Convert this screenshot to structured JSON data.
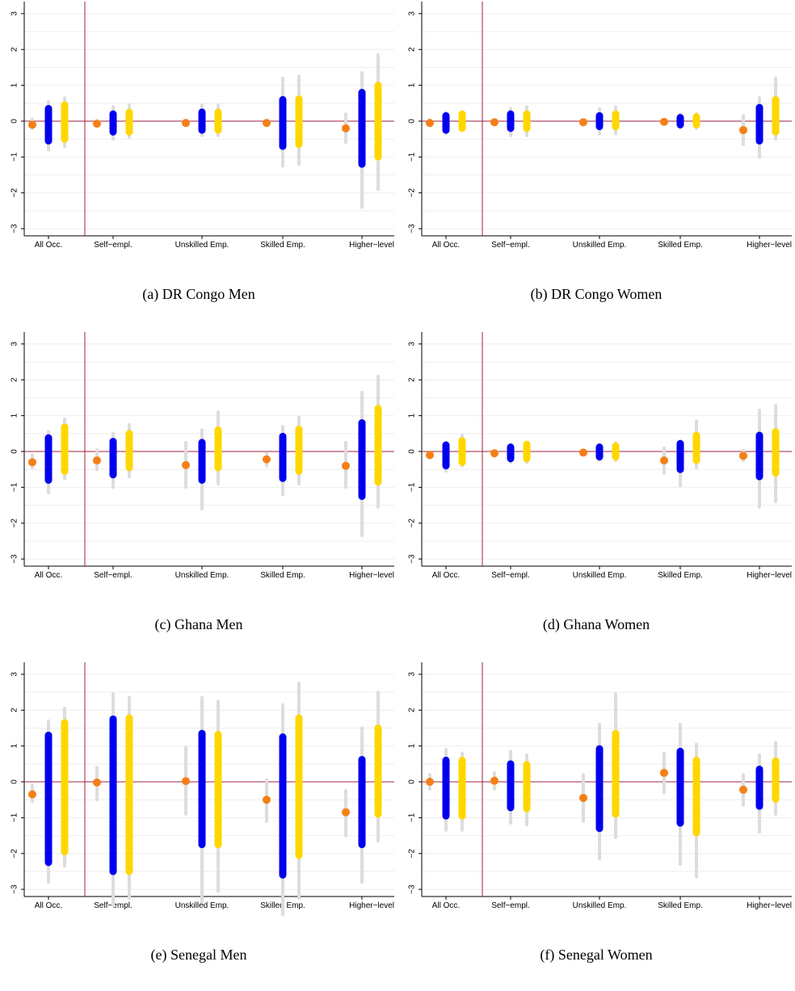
{
  "colors": {
    "point": "#F57F17",
    "blue_bar": "#0000EE",
    "yellow_bar": "#FFD700",
    "ci_gray": "#DDDDDD",
    "zero_line": "#A0203C",
    "divider": "#A0203C",
    "grid": "#EEEEEE"
  },
  "chart_data": [
    {
      "type": "interval",
      "letter": "(a)",
      "title": "DR Congo Men",
      "categories": [
        "All Occ.",
        "Self−empl.",
        "Unskilled Emp.",
        "Skilled Emp.",
        "Higher−level"
      ],
      "ylim": [
        -3.2,
        3.2
      ],
      "yticks": [
        "−3",
        "−2",
        "−1",
        "0",
        "1",
        "2",
        "3"
      ],
      "grid": true,
      "points": [
        {
          "y": -0.1,
          "ci": [
            -0.2,
            0.05
          ]
        },
        {
          "y": -0.07,
          "ci": [
            -0.15,
            0.02
          ]
        },
        {
          "y": -0.05,
          "ci": [
            -0.1,
            0.02
          ]
        },
        {
          "y": -0.05,
          "ci": [
            -0.1,
            0.02
          ]
        },
        {
          "y": -0.2,
          "ci": [
            -0.6,
            0.2
          ]
        }
      ],
      "blue": [
        {
          "lo": -0.55,
          "hi": 0.35,
          "ci": [
            -0.8,
            0.55
          ]
        },
        {
          "lo": -0.3,
          "hi": 0.2,
          "ci": [
            -0.5,
            0.4
          ]
        },
        {
          "lo": -0.25,
          "hi": 0.25,
          "ci": [
            -0.4,
            0.45
          ]
        },
        {
          "lo": -0.7,
          "hi": 0.6,
          "ci": [
            -1.25,
            1.2
          ]
        },
        {
          "lo": -1.2,
          "hi": 0.8,
          "ci": [
            -2.4,
            1.35
          ]
        }
      ],
      "yellow": [
        {
          "lo": -0.5,
          "hi": 0.45,
          "ci": [
            -0.7,
            0.65
          ]
        },
        {
          "lo": -0.3,
          "hi": 0.25,
          "ci": [
            -0.45,
            0.45
          ]
        },
        {
          "lo": -0.25,
          "hi": 0.25,
          "ci": [
            -0.4,
            0.45
          ]
        },
        {
          "lo": -0.65,
          "hi": 0.62,
          "ci": [
            -1.2,
            1.25
          ]
        },
        {
          "lo": -1.0,
          "hi": 1.0,
          "ci": [
            -1.9,
            1.85
          ]
        }
      ]
    },
    {
      "type": "interval",
      "letter": "(b)",
      "title": "DR Congo Women",
      "categories": [
        "All Occ.",
        "Self−empl.",
        "Unskilled Emp.",
        "Skilled Emp.",
        "Higher−level"
      ],
      "ylim": [
        -3.2,
        3.2
      ],
      "yticks": [
        "−3",
        "−2",
        "−1",
        "0",
        "1",
        "2",
        "3"
      ],
      "grid": true,
      "points": [
        {
          "y": -0.05,
          "ci": [
            -0.12,
            0.03
          ]
        },
        {
          "y": -0.03,
          "ci": [
            -0.08,
            0.02
          ]
        },
        {
          "y": -0.03,
          "ci": [
            -0.08,
            0.02
          ]
        },
        {
          "y": -0.02,
          "ci": [
            -0.06,
            0.02
          ]
        },
        {
          "y": -0.25,
          "ci": [
            -0.65,
            0.15
          ]
        }
      ],
      "blue": [
        {
          "lo": -0.25,
          "hi": 0.15,
          "ci": [
            -0.35,
            0.25
          ]
        },
        {
          "lo": -0.2,
          "hi": 0.2,
          "ci": [
            -0.4,
            0.35
          ]
        },
        {
          "lo": -0.15,
          "hi": 0.15,
          "ci": [
            -0.35,
            0.35
          ]
        },
        {
          "lo": -0.1,
          "hi": 0.1,
          "ci": [
            -0.2,
            0.2
          ]
        },
        {
          "lo": -0.55,
          "hi": 0.38,
          "ci": [
            -1.0,
            0.65
          ]
        }
      ],
      "yellow": [
        {
          "lo": -0.2,
          "hi": 0.2,
          "ci": [
            -0.25,
            0.25
          ]
        },
        {
          "lo": -0.2,
          "hi": 0.2,
          "ci": [
            -0.4,
            0.4
          ]
        },
        {
          "lo": -0.15,
          "hi": 0.2,
          "ci": [
            -0.35,
            0.4
          ]
        },
        {
          "lo": -0.1,
          "hi": 0.12,
          "ci": [
            -0.2,
            0.2
          ]
        },
        {
          "lo": -0.3,
          "hi": 0.6,
          "ci": [
            -0.5,
            1.2
          ]
        }
      ]
    },
    {
      "type": "interval",
      "letter": "(c)",
      "title": "Ghana Men",
      "categories": [
        "All Occ.",
        "Self−empl.",
        "Unskilled Emp.",
        "Skilled Emp.",
        "Higher−level"
      ],
      "ylim": [
        -3.2,
        3.2
      ],
      "yticks": [
        "−3",
        "−2",
        "−1",
        "0",
        "1",
        "2",
        "3"
      ],
      "grid": true,
      "points": [
        {
          "y": -0.3,
          "ci": [
            -0.45,
            -0.1
          ]
        },
        {
          "y": -0.25,
          "ci": [
            -0.5,
            0.05
          ]
        },
        {
          "y": -0.38,
          "ci": [
            -1.0,
            0.25
          ]
        },
        {
          "y": -0.22,
          "ci": [
            -0.4,
            -0.05
          ]
        },
        {
          "y": -0.4,
          "ci": [
            -1.0,
            0.25
          ]
        }
      ],
      "blue": [
        {
          "lo": -0.8,
          "hi": 0.38,
          "ci": [
            -1.15,
            0.55
          ]
        },
        {
          "lo": -0.65,
          "hi": 0.28,
          "ci": [
            -1.0,
            0.5
          ]
        },
        {
          "lo": -0.8,
          "hi": 0.25,
          "ci": [
            -1.6,
            0.6
          ]
        },
        {
          "lo": -0.75,
          "hi": 0.42,
          "ci": [
            -1.2,
            0.7
          ]
        },
        {
          "lo": -1.25,
          "hi": 0.8,
          "ci": [
            -2.35,
            1.65
          ]
        }
      ],
      "yellow": [
        {
          "lo": -0.55,
          "hi": 0.68,
          "ci": [
            -0.75,
            0.9
          ]
        },
        {
          "lo": -0.45,
          "hi": 0.5,
          "ci": [
            -0.7,
            0.75
          ]
        },
        {
          "lo": -0.45,
          "hi": 0.6,
          "ci": [
            -0.9,
            1.1
          ]
        },
        {
          "lo": -0.55,
          "hi": 0.62,
          "ci": [
            -0.9,
            0.95
          ]
        },
        {
          "lo": -0.85,
          "hi": 1.2,
          "ci": [
            -1.55,
            2.1
          ]
        }
      ]
    },
    {
      "type": "interval",
      "letter": "(d)",
      "title": "Ghana Women",
      "categories": [
        "All Occ.",
        "Self−empl.",
        "Unskilled Emp.",
        "Skilled Emp.",
        "Higher−level"
      ],
      "ylim": [
        -3.2,
        3.2
      ],
      "yticks": [
        "−3",
        "−2",
        "−1",
        "0",
        "1",
        "2",
        "3"
      ],
      "grid": true,
      "points": [
        {
          "y": -0.1,
          "ci": [
            -0.18,
            0.0
          ]
        },
        {
          "y": -0.05,
          "ci": [
            -0.1,
            0.02
          ]
        },
        {
          "y": -0.03,
          "ci": [
            -0.08,
            0.02
          ]
        },
        {
          "y": -0.25,
          "ci": [
            -0.6,
            0.1
          ]
        },
        {
          "y": -0.12,
          "ci": [
            -0.25,
            0.02
          ]
        }
      ],
      "blue": [
        {
          "lo": -0.4,
          "hi": 0.18,
          "ci": [
            -0.55,
            0.25
          ]
        },
        {
          "lo": -0.2,
          "hi": 0.12,
          "ci": [
            -0.3,
            0.2
          ]
        },
        {
          "lo": -0.15,
          "hi": 0.12,
          "ci": [
            -0.25,
            0.2
          ]
        },
        {
          "lo": -0.5,
          "hi": 0.22,
          "ci": [
            -0.95,
            0.3
          ]
        },
        {
          "lo": -0.7,
          "hi": 0.45,
          "ci": [
            -1.55,
            1.15
          ]
        }
      ],
      "yellow": [
        {
          "lo": -0.3,
          "hi": 0.3,
          "ci": [
            -0.4,
            0.45
          ]
        },
        {
          "lo": -0.2,
          "hi": 0.2,
          "ci": [
            -0.3,
            0.25
          ]
        },
        {
          "lo": -0.15,
          "hi": 0.15,
          "ci": [
            -0.25,
            0.25
          ]
        },
        {
          "lo": -0.25,
          "hi": 0.45,
          "ci": [
            -0.45,
            0.85
          ]
        },
        {
          "lo": -0.6,
          "hi": 0.55,
          "ci": [
            -1.4,
            1.28
          ]
        }
      ]
    },
    {
      "type": "interval",
      "letter": "(e)",
      "title": "Senegal Men",
      "categories": [
        "All Occ.",
        "Self−empl.",
        "Unskilled Emp.",
        "Skilled Emp.",
        "Higher−level"
      ],
      "ylim": [
        -3.2,
        3.2
      ],
      "yticks": [
        "−3",
        "−2",
        "−1",
        "0",
        "1",
        "2",
        "3"
      ],
      "grid": true,
      "points": [
        {
          "y": -0.35,
          "ci": [
            -0.55,
            -0.1
          ]
        },
        {
          "y": -0.02,
          "ci": [
            -0.5,
            0.4
          ]
        },
        {
          "y": 0.02,
          "ci": [
            -0.9,
            0.95
          ]
        },
        {
          "y": -0.5,
          "ci": [
            -1.1,
            0.05
          ]
        },
        {
          "y": -0.85,
          "ci": [
            -1.5,
            -0.25
          ]
        }
      ],
      "blue": [
        {
          "lo": -2.25,
          "hi": 1.3,
          "ci": [
            -2.8,
            1.7
          ]
        },
        {
          "lo": -2.5,
          "hi": 1.75,
          "ci": [
            -3.45,
            2.45
          ]
        },
        {
          "lo": -1.75,
          "hi": 1.35,
          "ci": [
            -3.35,
            2.35
          ]
        },
        {
          "lo": -2.6,
          "hi": 1.25,
          "ci": [
            -3.7,
            2.15
          ]
        },
        {
          "lo": -1.75,
          "hi": 0.62,
          "ci": [
            -2.8,
            1.5
          ]
        }
      ],
      "yellow": [
        {
          "lo": -1.95,
          "hi": 1.65,
          "ci": [
            -2.35,
            2.05
          ]
        },
        {
          "lo": -2.5,
          "hi": 1.78,
          "ci": [
            -3.25,
            2.35
          ]
        },
        {
          "lo": -1.75,
          "hi": 1.32,
          "ci": [
            -3.05,
            2.25
          ]
        },
        {
          "lo": -2.05,
          "hi": 1.78,
          "ci": [
            -3.25,
            2.75
          ]
        },
        {
          "lo": -0.9,
          "hi": 1.5,
          "ci": [
            -1.65,
            2.5
          ]
        }
      ]
    },
    {
      "type": "interval",
      "letter": "(f)",
      "title": "Senegal Women",
      "categories": [
        "All Occ.",
        "Self−empl.",
        "Unskilled Emp.",
        "Skilled Emp.",
        "Higher−level"
      ],
      "ylim": [
        -3.2,
        3.2
      ],
      "yticks": [
        "−3",
        "−2",
        "−1",
        "0",
        "1",
        "2",
        "3"
      ],
      "grid": true,
      "points": [
        {
          "y": 0.0,
          "ci": [
            -0.2,
            0.2
          ]
        },
        {
          "y": 0.03,
          "ci": [
            -0.2,
            0.25
          ]
        },
        {
          "y": -0.45,
          "ci": [
            -1.1,
            0.2
          ]
        },
        {
          "y": 0.25,
          "ci": [
            -0.3,
            0.8
          ]
        },
        {
          "y": -0.22,
          "ci": [
            -0.65,
            0.2
          ]
        }
      ],
      "blue": [
        {
          "lo": -0.95,
          "hi": 0.6,
          "ci": [
            -1.35,
            0.9
          ]
        },
        {
          "lo": -0.72,
          "hi": 0.5,
          "ci": [
            -1.15,
            0.85
          ]
        },
        {
          "lo": -1.3,
          "hi": 0.92,
          "ci": [
            -2.15,
            1.6
          ]
        },
        {
          "lo": -1.15,
          "hi": 0.85,
          "ci": [
            -2.3,
            1.6
          ]
        },
        {
          "lo": -0.68,
          "hi": 0.35,
          "ci": [
            -1.4,
            0.75
          ]
        }
      ],
      "yellow": [
        {
          "lo": -0.95,
          "hi": 0.6,
          "ci": [
            -1.35,
            0.8
          ]
        },
        {
          "lo": -0.75,
          "hi": 0.48,
          "ci": [
            -1.2,
            0.75
          ]
        },
        {
          "lo": -0.9,
          "hi": 1.35,
          "ci": [
            -1.55,
            2.45
          ]
        },
        {
          "lo": -1.42,
          "hi": 0.6,
          "ci": [
            -2.65,
            1.05
          ]
        },
        {
          "lo": -0.48,
          "hi": 0.58,
          "ci": [
            -0.9,
            1.1
          ]
        }
      ]
    }
  ]
}
